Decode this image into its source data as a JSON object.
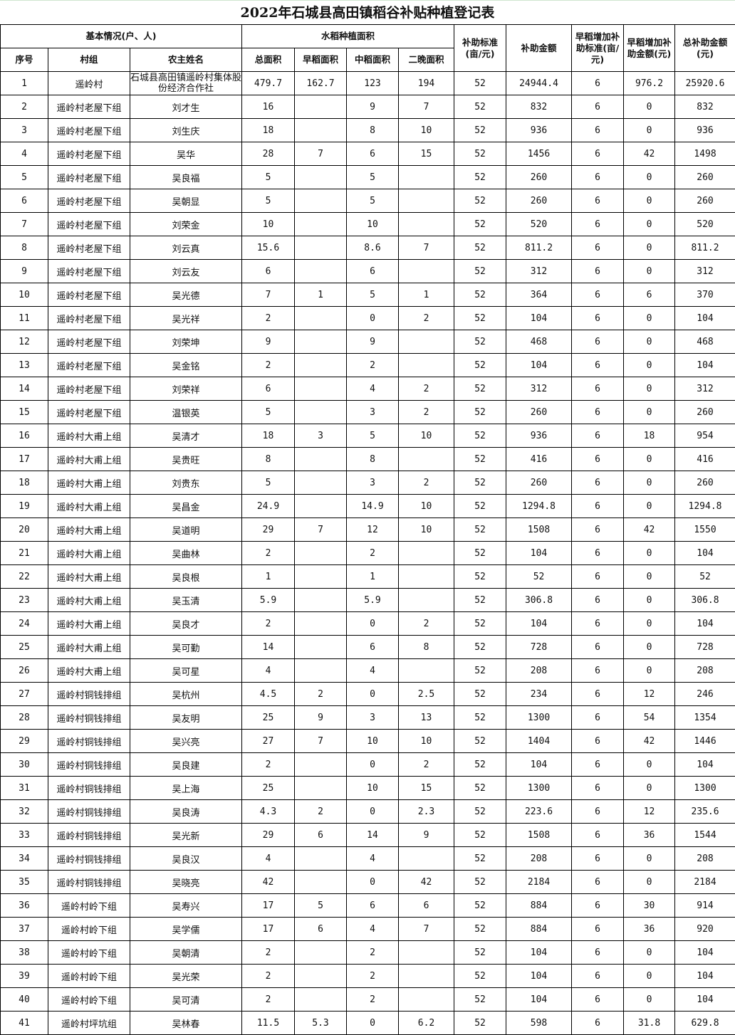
{
  "title": "2022年石城县高田镇稻谷补贴种植登记表",
  "headers": {
    "basic": "基本情况(户、人)",
    "rice_area": "水稻种植面积",
    "standard": "补助标准(亩/元)",
    "amount": "补助金额",
    "early_standard": "早稻增加补助标准(亩/元)",
    "early_amount": "早稻增加补助金额(元)",
    "total_amount": "总补助金额(元)",
    "seq": "序号",
    "group": "村组",
    "name": "农主姓名",
    "total_area": "总面积",
    "early_area": "早稻面积",
    "mid_area": "中稻面积",
    "late_area": "二晚面积"
  },
  "rows": [
    [
      "1",
      "遥岭村",
      "石城县高田镇遥岭村集体股份经济合作社",
      "479.7",
      "162.7",
      "123",
      "194",
      "52",
      "24944.4",
      "6",
      "976.2",
      "25920.6"
    ],
    [
      "2",
      "遥岭村老屋下组",
      "刘才生",
      "16",
      "",
      "9",
      "7",
      "52",
      "832",
      "6",
      "0",
      "832"
    ],
    [
      "3",
      "遥岭村老屋下组",
      "刘生庆",
      "18",
      "",
      "8",
      "10",
      "52",
      "936",
      "6",
      "0",
      "936"
    ],
    [
      "4",
      "遥岭村老屋下组",
      "吴华",
      "28",
      "7",
      "6",
      "15",
      "52",
      "1456",
      "6",
      "42",
      "1498"
    ],
    [
      "5",
      "遥岭村老屋下组",
      "吴良福",
      "5",
      "",
      "5",
      "",
      "52",
      "260",
      "6",
      "0",
      "260"
    ],
    [
      "6",
      "遥岭村老屋下组",
      "吴朝显",
      "5",
      "",
      "5",
      "",
      "52",
      "260",
      "6",
      "0",
      "260"
    ],
    [
      "7",
      "遥岭村老屋下组",
      "刘荣金",
      "10",
      "",
      "10",
      "",
      "52",
      "520",
      "6",
      "0",
      "520"
    ],
    [
      "8",
      "遥岭村老屋下组",
      "刘云真",
      "15.6",
      "",
      "8.6",
      "7",
      "52",
      "811.2",
      "6",
      "0",
      "811.2"
    ],
    [
      "9",
      "遥岭村老屋下组",
      "刘云友",
      "6",
      "",
      "6",
      "",
      "52",
      "312",
      "6",
      "0",
      "312"
    ],
    [
      "10",
      "遥岭村老屋下组",
      "吴光德",
      "7",
      "1",
      "5",
      "1",
      "52",
      "364",
      "6",
      "6",
      "370"
    ],
    [
      "11",
      "遥岭村老屋下组",
      "吴光祥",
      "2",
      "",
      "0",
      "2",
      "52",
      "104",
      "6",
      "0",
      "104"
    ],
    [
      "12",
      "遥岭村老屋下组",
      "刘荣坤",
      "9",
      "",
      "9",
      "",
      "52",
      "468",
      "6",
      "0",
      "468"
    ],
    [
      "13",
      "遥岭村老屋下组",
      "吴金铭",
      "2",
      "",
      "2",
      "",
      "52",
      "104",
      "6",
      "0",
      "104"
    ],
    [
      "14",
      "遥岭村老屋下组",
      "刘荣祥",
      "6",
      "",
      "4",
      "2",
      "52",
      "312",
      "6",
      "0",
      "312"
    ],
    [
      "15",
      "遥岭村老屋下组",
      "温银英",
      "5",
      "",
      "3",
      "2",
      "52",
      "260",
      "6",
      "0",
      "260"
    ],
    [
      "16",
      "遥岭村大甫上组",
      "吴清才",
      "18",
      "3",
      "5",
      "10",
      "52",
      "936",
      "6",
      "18",
      "954"
    ],
    [
      "17",
      "遥岭村大甫上组",
      "吴贵旺",
      "8",
      "",
      "8",
      "",
      "52",
      "416",
      "6",
      "0",
      "416"
    ],
    [
      "18",
      "遥岭村大甫上组",
      "刘贵东",
      "5",
      "",
      "3",
      "2",
      "52",
      "260",
      "6",
      "0",
      "260"
    ],
    [
      "19",
      "遥岭村大甫上组",
      "吴昌金",
      "24.9",
      "",
      "14.9",
      "10",
      "52",
      "1294.8",
      "6",
      "0",
      "1294.8"
    ],
    [
      "20",
      "遥岭村大甫上组",
      "吴道明",
      "29",
      "7",
      "12",
      "10",
      "52",
      "1508",
      "6",
      "42",
      "1550"
    ],
    [
      "21",
      "遥岭村大甫上组",
      "吴曲林",
      "2",
      "",
      "2",
      "",
      "52",
      "104",
      "6",
      "0",
      "104"
    ],
    [
      "22",
      "遥岭村大甫上组",
      "吴良根",
      "1",
      "",
      "1",
      "",
      "52",
      "52",
      "6",
      "0",
      "52"
    ],
    [
      "23",
      "遥岭村大甫上组",
      "吴玉清",
      "5.9",
      "",
      "5.9",
      "",
      "52",
      "306.8",
      "6",
      "0",
      "306.8"
    ],
    [
      "24",
      "遥岭村大甫上组",
      "吴良才",
      "2",
      "",
      "0",
      "2",
      "52",
      "104",
      "6",
      "0",
      "104"
    ],
    [
      "25",
      "遥岭村大甫上组",
      "吴可勤",
      "14",
      "",
      "6",
      "8",
      "52",
      "728",
      "6",
      "0",
      "728"
    ],
    [
      "26",
      "遥岭村大甫上组",
      "吴可星",
      "4",
      "",
      "4",
      "",
      "52",
      "208",
      "6",
      "0",
      "208"
    ],
    [
      "27",
      "遥岭村铜钱排组",
      "吴杭州",
      "4.5",
      "2",
      "0",
      "2.5",
      "52",
      "234",
      "6",
      "12",
      "246"
    ],
    [
      "28",
      "遥岭村铜钱排组",
      "吴友明",
      "25",
      "9",
      "3",
      "13",
      "52",
      "1300",
      "6",
      "54",
      "1354"
    ],
    [
      "29",
      "遥岭村铜钱排组",
      "吴兴亮",
      "27",
      "7",
      "10",
      "10",
      "52",
      "1404",
      "6",
      "42",
      "1446"
    ],
    [
      "30",
      "遥岭村铜钱排组",
      "吴良建",
      "2",
      "",
      "0",
      "2",
      "52",
      "104",
      "6",
      "0",
      "104"
    ],
    [
      "31",
      "遥岭村铜钱排组",
      "吴上海",
      "25",
      "",
      "10",
      "15",
      "52",
      "1300",
      "6",
      "0",
      "1300"
    ],
    [
      "32",
      "遥岭村铜钱排组",
      "吴良涛",
      "4.3",
      "2",
      "0",
      "2.3",
      "52",
      "223.6",
      "6",
      "12",
      "235.6"
    ],
    [
      "33",
      "遥岭村铜钱排组",
      "吴光新",
      "29",
      "6",
      "14",
      "9",
      "52",
      "1508",
      "6",
      "36",
      "1544"
    ],
    [
      "34",
      "遥岭村铜钱排组",
      "吴良汉",
      "4",
      "",
      "4",
      "",
      "52",
      "208",
      "6",
      "0",
      "208"
    ],
    [
      "35",
      "遥岭村铜钱排组",
      "吴晓亮",
      "42",
      "",
      "0",
      "42",
      "52",
      "2184",
      "6",
      "0",
      "2184"
    ],
    [
      "36",
      "遥岭村岭下组",
      "吴寿兴",
      "17",
      "5",
      "6",
      "6",
      "52",
      "884",
      "6",
      "30",
      "914"
    ],
    [
      "37",
      "遥岭村岭下组",
      "吴学儒",
      "17",
      "6",
      "4",
      "7",
      "52",
      "884",
      "6",
      "36",
      "920"
    ],
    [
      "38",
      "遥岭村岭下组",
      "吴朝清",
      "2",
      "",
      "2",
      "",
      "52",
      "104",
      "6",
      "0",
      "104"
    ],
    [
      "39",
      "遥岭村岭下组",
      "吴光荣",
      "2",
      "",
      "2",
      "",
      "52",
      "104",
      "6",
      "0",
      "104"
    ],
    [
      "40",
      "遥岭村岭下组",
      "吴可清",
      "2",
      "",
      "2",
      "",
      "52",
      "104",
      "6",
      "0",
      "104"
    ],
    [
      "41",
      "遥岭村坪坑组",
      "吴林春",
      "11.5",
      "5.3",
      "0",
      "6.2",
      "52",
      "598",
      "6",
      "31.8",
      "629.8"
    ]
  ]
}
